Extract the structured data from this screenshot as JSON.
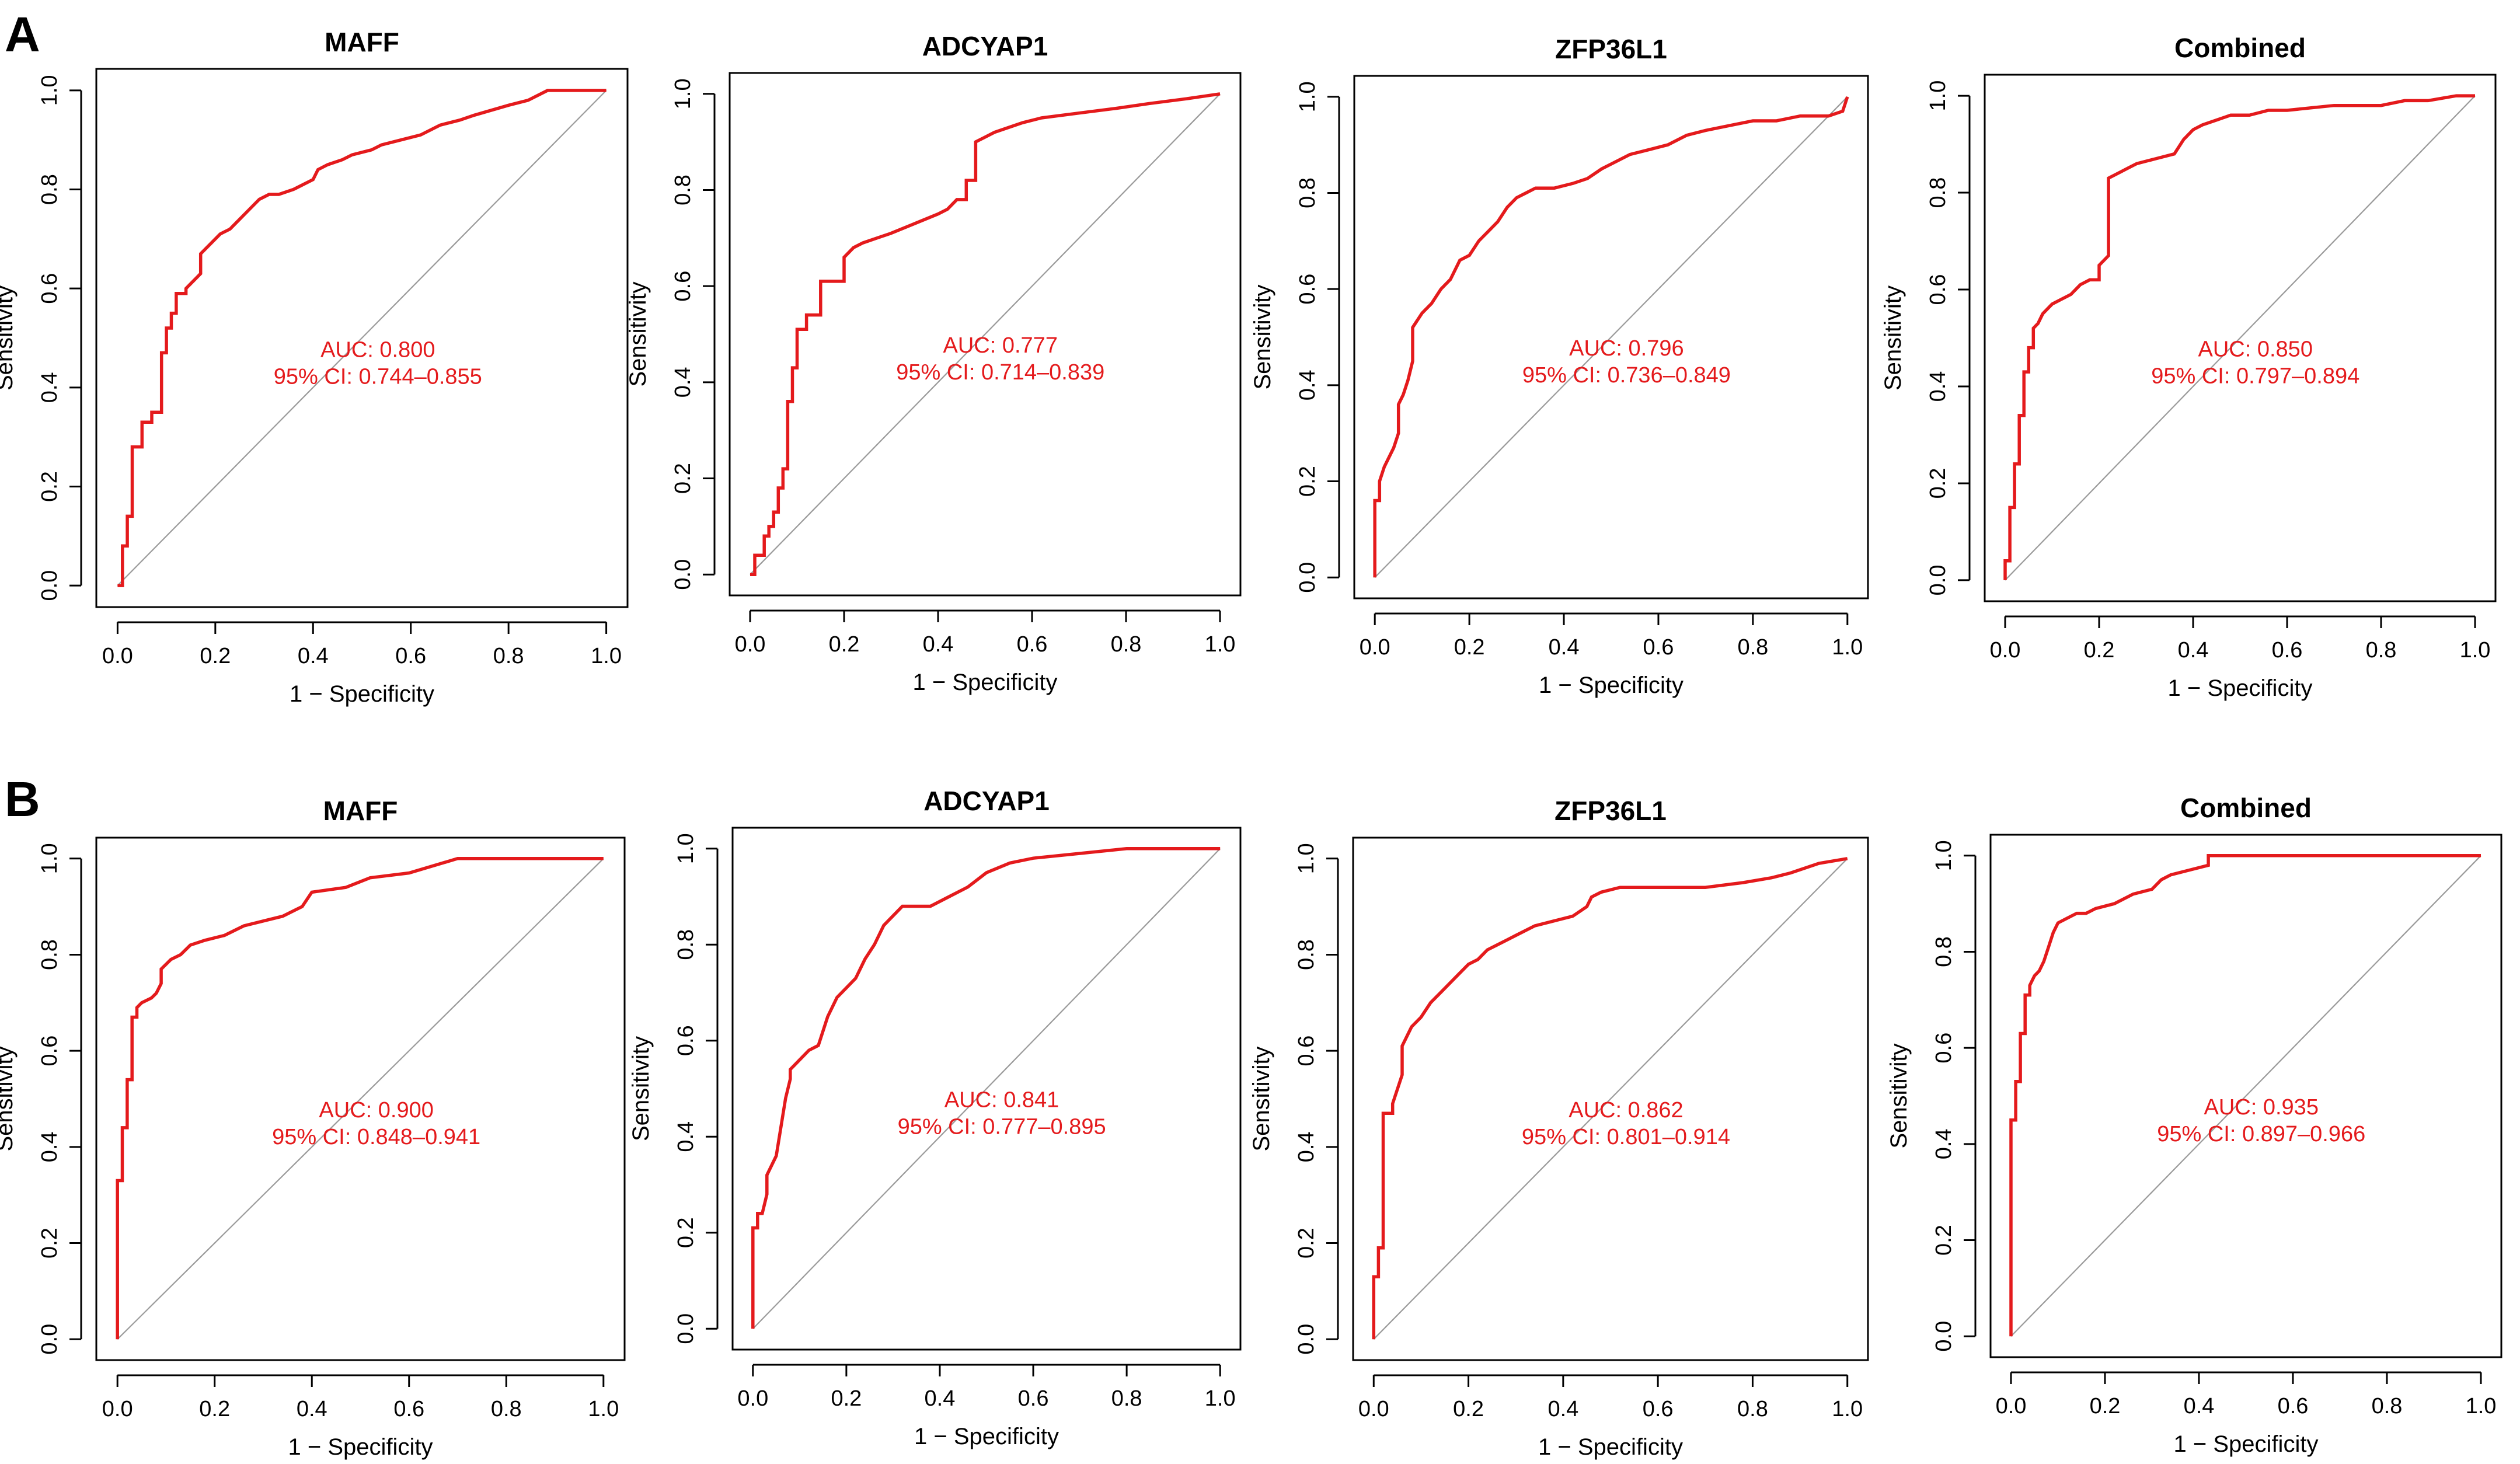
{
  "panel_labels": [
    "A",
    "B"
  ],
  "chart_data": [
    {
      "type": "line",
      "panel": "A",
      "title": "MAFF",
      "xlabel": "1 − Specificity",
      "ylabel": "Sensitivity",
      "xlim": [
        0,
        1
      ],
      "ylim": [
        0,
        1
      ],
      "xticks": [
        "0.0",
        "0.2",
        "0.4",
        "0.6",
        "0.8",
        "1.0"
      ],
      "yticks": [
        "0.0",
        "0.2",
        "0.4",
        "0.6",
        "0.8",
        "1.0"
      ],
      "reference_line": "diagonal",
      "auc_label": "AUC: 0.800",
      "ci_label": "95% CI: 0.744–0.855",
      "series": [
        {
          "name": "ROC",
          "color": "#e41a1c",
          "x": [
            0,
            0.01,
            0.01,
            0.02,
            0.02,
            0.03,
            0.03,
            0.05,
            0.05,
            0.07,
            0.07,
            0.09,
            0.09,
            0.1,
            0.1,
            0.11,
            0.11,
            0.12,
            0.12,
            0.14,
            0.14,
            0.15,
            0.16,
            0.17,
            0.17,
            0.19,
            0.21,
            0.23,
            0.25,
            0.27,
            0.29,
            0.31,
            0.33,
            0.36,
            0.4,
            0.41,
            0.43,
            0.46,
            0.48,
            0.52,
            0.54,
            0.58,
            0.62,
            0.66,
            0.7,
            0.73,
            0.8,
            0.84,
            0.88,
            0.94,
            1.0
          ],
          "y": [
            0,
            0,
            0.08,
            0.08,
            0.14,
            0.14,
            0.28,
            0.28,
            0.33,
            0.33,
            0.35,
            0.35,
            0.47,
            0.47,
            0.52,
            0.52,
            0.55,
            0.55,
            0.59,
            0.59,
            0.6,
            0.61,
            0.62,
            0.63,
            0.67,
            0.69,
            0.71,
            0.72,
            0.74,
            0.76,
            0.78,
            0.79,
            0.79,
            0.8,
            0.82,
            0.84,
            0.85,
            0.86,
            0.87,
            0.88,
            0.89,
            0.9,
            0.91,
            0.93,
            0.94,
            0.95,
            0.97,
            0.98,
            1.0,
            1.0,
            1.0
          ]
        }
      ]
    },
    {
      "type": "line",
      "panel": "A",
      "title": "ADCYAP1",
      "xlabel": "1 − Specificity",
      "ylabel": "Sensitivity",
      "xlim": [
        0,
        1
      ],
      "ylim": [
        0,
        1
      ],
      "xticks": [
        "0.0",
        "0.2",
        "0.4",
        "0.6",
        "0.8",
        "1.0"
      ],
      "yticks": [
        "0.0",
        "0.2",
        "0.4",
        "0.6",
        "0.8",
        "1.0"
      ],
      "reference_line": "diagonal",
      "auc_label": "AUC: 0.777",
      "ci_label": "95% CI: 0.714–0.839",
      "series": [
        {
          "name": "ROC",
          "color": "#e41a1c",
          "x": [
            0,
            0.01,
            0.01,
            0.03,
            0.03,
            0.04,
            0.04,
            0.05,
            0.05,
            0.06,
            0.06,
            0.07,
            0.07,
            0.08,
            0.08,
            0.09,
            0.09,
            0.1,
            0.1,
            0.12,
            0.12,
            0.15,
            0.15,
            0.2,
            0.2,
            0.22,
            0.24,
            0.27,
            0.3,
            0.35,
            0.4,
            0.42,
            0.44,
            0.46,
            0.46,
            0.48,
            0.48,
            0.5,
            0.52,
            0.55,
            0.58,
            0.62,
            0.7,
            0.78,
            0.85,
            0.93,
            1.0
          ],
          "y": [
            0,
            0,
            0.04,
            0.04,
            0.08,
            0.08,
            0.1,
            0.1,
            0.13,
            0.13,
            0.18,
            0.18,
            0.22,
            0.22,
            0.36,
            0.36,
            0.43,
            0.43,
            0.51,
            0.51,
            0.54,
            0.54,
            0.61,
            0.61,
            0.66,
            0.68,
            0.69,
            0.7,
            0.71,
            0.73,
            0.75,
            0.76,
            0.78,
            0.78,
            0.82,
            0.82,
            0.9,
            0.91,
            0.92,
            0.93,
            0.94,
            0.95,
            0.96,
            0.97,
            0.98,
            0.99,
            1.0
          ]
        }
      ]
    },
    {
      "type": "line",
      "panel": "A",
      "title": "ZFP36L1",
      "xlabel": "1 − Specificity",
      "ylabel": "Sensitivity",
      "xlim": [
        0,
        1
      ],
      "ylim": [
        0,
        1
      ],
      "xticks": [
        "0.0",
        "0.2",
        "0.4",
        "0.6",
        "0.8",
        "1.0"
      ],
      "yticks": [
        "0.0",
        "0.2",
        "0.4",
        "0.6",
        "0.8",
        "1.0"
      ],
      "reference_line": "diagonal",
      "auc_label": "AUC: 0.796",
      "ci_label": "95% CI: 0.736–0.849",
      "series": [
        {
          "name": "ROC",
          "color": "#e41a1c",
          "x": [
            0,
            0,
            0.01,
            0.01,
            0.02,
            0.03,
            0.04,
            0.05,
            0.05,
            0.06,
            0.07,
            0.08,
            0.08,
            0.1,
            0.12,
            0.14,
            0.16,
            0.18,
            0.2,
            0.22,
            0.24,
            0.26,
            0.28,
            0.3,
            0.32,
            0.34,
            0.38,
            0.42,
            0.45,
            0.48,
            0.5,
            0.54,
            0.58,
            0.62,
            0.66,
            0.7,
            0.75,
            0.8,
            0.85,
            0.9,
            0.96,
            0.99,
            1.0
          ],
          "y": [
            0,
            0.16,
            0.16,
            0.2,
            0.23,
            0.25,
            0.27,
            0.3,
            0.36,
            0.38,
            0.41,
            0.45,
            0.52,
            0.55,
            0.57,
            0.6,
            0.62,
            0.66,
            0.67,
            0.7,
            0.72,
            0.74,
            0.77,
            0.79,
            0.8,
            0.81,
            0.81,
            0.82,
            0.83,
            0.85,
            0.86,
            0.88,
            0.89,
            0.9,
            0.92,
            0.93,
            0.94,
            0.95,
            0.95,
            0.96,
            0.96,
            0.97,
            1.0
          ]
        }
      ]
    },
    {
      "type": "line",
      "panel": "A",
      "title": "Combined",
      "xlabel": "1 − Specificity",
      "ylabel": "Sensitivity",
      "xlim": [
        0,
        1
      ],
      "ylim": [
        0,
        1
      ],
      "xticks": [
        "0.0",
        "0.2",
        "0.4",
        "0.6",
        "0.8",
        "1.0"
      ],
      "yticks": [
        "0.0",
        "0.2",
        "0.4",
        "0.6",
        "0.8",
        "1.0"
      ],
      "reference_line": "diagonal",
      "auc_label": "AUC: 0.850",
      "ci_label": "95% CI: 0.797–0.894",
      "series": [
        {
          "name": "ROC",
          "color": "#e41a1c",
          "x": [
            0,
            0,
            0.01,
            0.01,
            0.02,
            0.02,
            0.03,
            0.03,
            0.04,
            0.04,
            0.05,
            0.05,
            0.06,
            0.06,
            0.07,
            0.08,
            0.1,
            0.12,
            0.14,
            0.16,
            0.18,
            0.2,
            0.2,
            0.22,
            0.22,
            0.24,
            0.26,
            0.28,
            0.32,
            0.36,
            0.38,
            0.4,
            0.42,
            0.45,
            0.48,
            0.52,
            0.56,
            0.6,
            0.7,
            0.8,
            0.85,
            0.9,
            0.96,
            1.0
          ],
          "y": [
            0,
            0.04,
            0.04,
            0.15,
            0.15,
            0.24,
            0.24,
            0.34,
            0.34,
            0.43,
            0.43,
            0.48,
            0.48,
            0.52,
            0.53,
            0.55,
            0.57,
            0.58,
            0.59,
            0.61,
            0.62,
            0.62,
            0.65,
            0.67,
            0.83,
            0.84,
            0.85,
            0.86,
            0.87,
            0.88,
            0.91,
            0.93,
            0.94,
            0.95,
            0.96,
            0.96,
            0.97,
            0.97,
            0.98,
            0.98,
            0.99,
            0.99,
            1.0,
            1.0
          ]
        }
      ]
    },
    {
      "type": "line",
      "panel": "B",
      "title": "MAFF",
      "xlabel": "1 − Specificity",
      "ylabel": "Sensitivity",
      "xlim": [
        0,
        1
      ],
      "ylim": [
        0,
        1
      ],
      "xticks": [
        "0.0",
        "0.2",
        "0.4",
        "0.6",
        "0.8",
        "1.0"
      ],
      "yticks": [
        "0.0",
        "0.2",
        "0.4",
        "0.6",
        "0.8",
        "1.0"
      ],
      "reference_line": "diagonal",
      "auc_label": "AUC: 0.900",
      "ci_label": "95% CI: 0.848–0.941",
      "series": [
        {
          "name": "ROC",
          "color": "#e41a1c",
          "x": [
            0,
            0,
            0.01,
            0.01,
            0.02,
            0.02,
            0.03,
            0.03,
            0.04,
            0.04,
            0.05,
            0.07,
            0.08,
            0.09,
            0.09,
            0.11,
            0.13,
            0.15,
            0.18,
            0.22,
            0.26,
            0.3,
            0.34,
            0.38,
            0.4,
            0.47,
            0.52,
            0.6,
            0.7,
            0.8,
            0.9,
            1.0
          ],
          "y": [
            0,
            0.33,
            0.33,
            0.44,
            0.44,
            0.54,
            0.54,
            0.67,
            0.67,
            0.69,
            0.7,
            0.71,
            0.72,
            0.74,
            0.77,
            0.79,
            0.8,
            0.82,
            0.83,
            0.84,
            0.86,
            0.87,
            0.88,
            0.9,
            0.93,
            0.94,
            0.96,
            0.97,
            1.0,
            1.0,
            1.0,
            1.0
          ]
        }
      ]
    },
    {
      "type": "line",
      "panel": "B",
      "title": "ADCYAP1",
      "xlabel": "1 − Specificity",
      "ylabel": "Sensitivity",
      "xlim": [
        0,
        1
      ],
      "ylim": [
        0,
        1
      ],
      "xticks": [
        "0.0",
        "0.2",
        "0.4",
        "0.6",
        "0.8",
        "1.0"
      ],
      "yticks": [
        "0.0",
        "0.2",
        "0.4",
        "0.6",
        "0.8",
        "1.0"
      ],
      "reference_line": "diagonal",
      "auc_label": "AUC: 0.841",
      "ci_label": "95% CI: 0.777–0.895",
      "series": [
        {
          "name": "ROC",
          "color": "#e41a1c",
          "x": [
            0,
            0,
            0.01,
            0.01,
            0.02,
            0.03,
            0.03,
            0.05,
            0.06,
            0.07,
            0.08,
            0.08,
            0.09,
            0.1,
            0.12,
            0.14,
            0.16,
            0.17,
            0.18,
            0.2,
            0.22,
            0.24,
            0.26,
            0.28,
            0.3,
            0.32,
            0.34,
            0.38,
            0.42,
            0.46,
            0.5,
            0.55,
            0.6,
            0.7,
            0.8,
            1.0
          ],
          "y": [
            0,
            0.21,
            0.21,
            0.24,
            0.24,
            0.28,
            0.32,
            0.36,
            0.42,
            0.48,
            0.52,
            0.54,
            0.55,
            0.56,
            0.58,
            0.59,
            0.65,
            0.67,
            0.69,
            0.71,
            0.73,
            0.77,
            0.8,
            0.84,
            0.86,
            0.88,
            0.88,
            0.88,
            0.9,
            0.92,
            0.95,
            0.97,
            0.98,
            0.99,
            1.0,
            1.0
          ]
        }
      ]
    },
    {
      "type": "line",
      "panel": "B",
      "title": "ZFP36L1",
      "xlabel": "1 − Specificity",
      "ylabel": "Sensitivity",
      "xlim": [
        0,
        1
      ],
      "ylim": [
        0,
        1
      ],
      "xticks": [
        "0.0",
        "0.2",
        "0.4",
        "0.6",
        "0.8",
        "1.0"
      ],
      "yticks": [
        "0.0",
        "0.2",
        "0.4",
        "0.6",
        "0.8",
        "1.0"
      ],
      "reference_line": "diagonal",
      "auc_label": "AUC: 0.862",
      "ci_label": "95% CI: 0.801–0.914",
      "series": [
        {
          "name": "ROC",
          "color": "#e41a1c",
          "x": [
            0,
            0,
            0.01,
            0.01,
            0.02,
            0.02,
            0.04,
            0.04,
            0.06,
            0.06,
            0.08,
            0.1,
            0.12,
            0.14,
            0.16,
            0.18,
            0.2,
            0.22,
            0.24,
            0.26,
            0.28,
            0.3,
            0.34,
            0.38,
            0.42,
            0.45,
            0.46,
            0.48,
            0.52,
            0.6,
            0.7,
            0.78,
            0.84,
            0.88,
            0.94,
            1.0
          ],
          "y": [
            0,
            0.13,
            0.13,
            0.19,
            0.19,
            0.47,
            0.47,
            0.49,
            0.55,
            0.61,
            0.65,
            0.67,
            0.7,
            0.72,
            0.74,
            0.76,
            0.78,
            0.79,
            0.81,
            0.82,
            0.83,
            0.84,
            0.86,
            0.87,
            0.88,
            0.9,
            0.92,
            0.93,
            0.94,
            0.94,
            0.94,
            0.95,
            0.96,
            0.97,
            0.99,
            1.0
          ]
        }
      ]
    },
    {
      "type": "line",
      "panel": "B",
      "title": "Combined",
      "xlabel": "1 − Specificity",
      "ylabel": "Sensitivity",
      "xlim": [
        0,
        1
      ],
      "ylim": [
        0,
        1
      ],
      "xticks": [
        "0.0",
        "0.2",
        "0.4",
        "0.6",
        "0.8",
        "1.0"
      ],
      "yticks": [
        "0.0",
        "0.2",
        "0.4",
        "0.6",
        "0.8",
        "1.0"
      ],
      "reference_line": "diagonal",
      "auc_label": "AUC: 0.935",
      "ci_label": "95% CI: 0.897–0.966",
      "series": [
        {
          "name": "ROC",
          "color": "#e41a1c",
          "x": [
            0,
            0,
            0.01,
            0.01,
            0.02,
            0.02,
            0.03,
            0.03,
            0.04,
            0.04,
            0.05,
            0.06,
            0.07,
            0.08,
            0.09,
            0.1,
            0.12,
            0.14,
            0.16,
            0.18,
            0.22,
            0.26,
            0.3,
            0.32,
            0.34,
            0.38,
            0.42,
            0.42,
            0.5,
            0.6,
            0.7,
            0.8,
            0.9,
            1.0
          ],
          "y": [
            0,
            0.45,
            0.45,
            0.53,
            0.53,
            0.63,
            0.63,
            0.71,
            0.71,
            0.73,
            0.75,
            0.76,
            0.78,
            0.81,
            0.84,
            0.86,
            0.87,
            0.88,
            0.88,
            0.89,
            0.9,
            0.92,
            0.93,
            0.95,
            0.96,
            0.97,
            0.98,
            1.0,
            1.0,
            1.0,
            1.0,
            1.0,
            1.0,
            1.0
          ]
        }
      ]
    }
  ]
}
